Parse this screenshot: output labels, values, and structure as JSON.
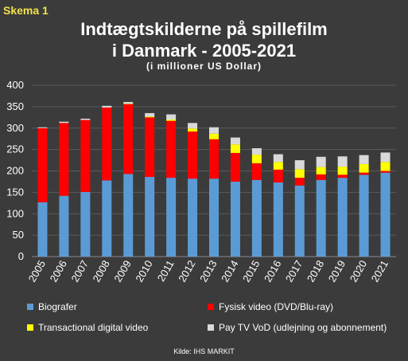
{
  "badge": "Skema 1",
  "source": "Kilde: IHS MARKIT",
  "chart_data": {
    "type": "bar",
    "stacked": true,
    "title": "Indtægtskilderne på spillefilm i Danmark - 2005-2021",
    "title_lines": [
      "Indtægtskilderne på spillefilm",
      "i Danmark - 2005-2021"
    ],
    "subtitle": "(i millioner US Dollar)",
    "xlabel": "",
    "ylabel": "",
    "ylim": [
      0,
      400
    ],
    "yticks": [
      0,
      50,
      100,
      150,
      200,
      250,
      300,
      350,
      400
    ],
    "grid": true,
    "legend_position": "bottom",
    "categories": [
      "2005",
      "2006",
      "2007",
      "2008",
      "2009",
      "2010",
      "2011",
      "2012",
      "2013",
      "2014",
      "2015",
      "2016",
      "2017",
      "2018",
      "2019",
      "2020",
      "2021"
    ],
    "series": [
      {
        "name": "Biografer",
        "color": "#5b9bd5",
        "values": [
          127,
          142,
          151,
          178,
          193,
          186,
          184,
          182,
          182,
          175,
          179,
          173,
          166,
          179,
          184,
          191,
          196
        ]
      },
      {
        "name": "Fysisk video (DVD/Blu-ray)",
        "color": "#ff0000",
        "values": [
          173,
          170,
          168,
          170,
          163,
          139,
          133,
          110,
          92,
          67,
          39,
          30,
          18,
          13,
          7,
          5,
          4
        ]
      },
      {
        "name": "Transactional digital video",
        "color": "#ffff00",
        "values": [
          0,
          0,
          0,
          0,
          1,
          2,
          3,
          7,
          13,
          20,
          20,
          18,
          20,
          17,
          19,
          20,
          21
        ]
      },
      {
        "name": "Pay TV VoD (udlejning og abonnement)",
        "color": "#d9d9d9",
        "values": [
          2,
          3,
          3,
          4,
          4,
          8,
          12,
          13,
          15,
          16,
          15,
          18,
          21,
          24,
          24,
          21,
          22
        ]
      }
    ]
  }
}
